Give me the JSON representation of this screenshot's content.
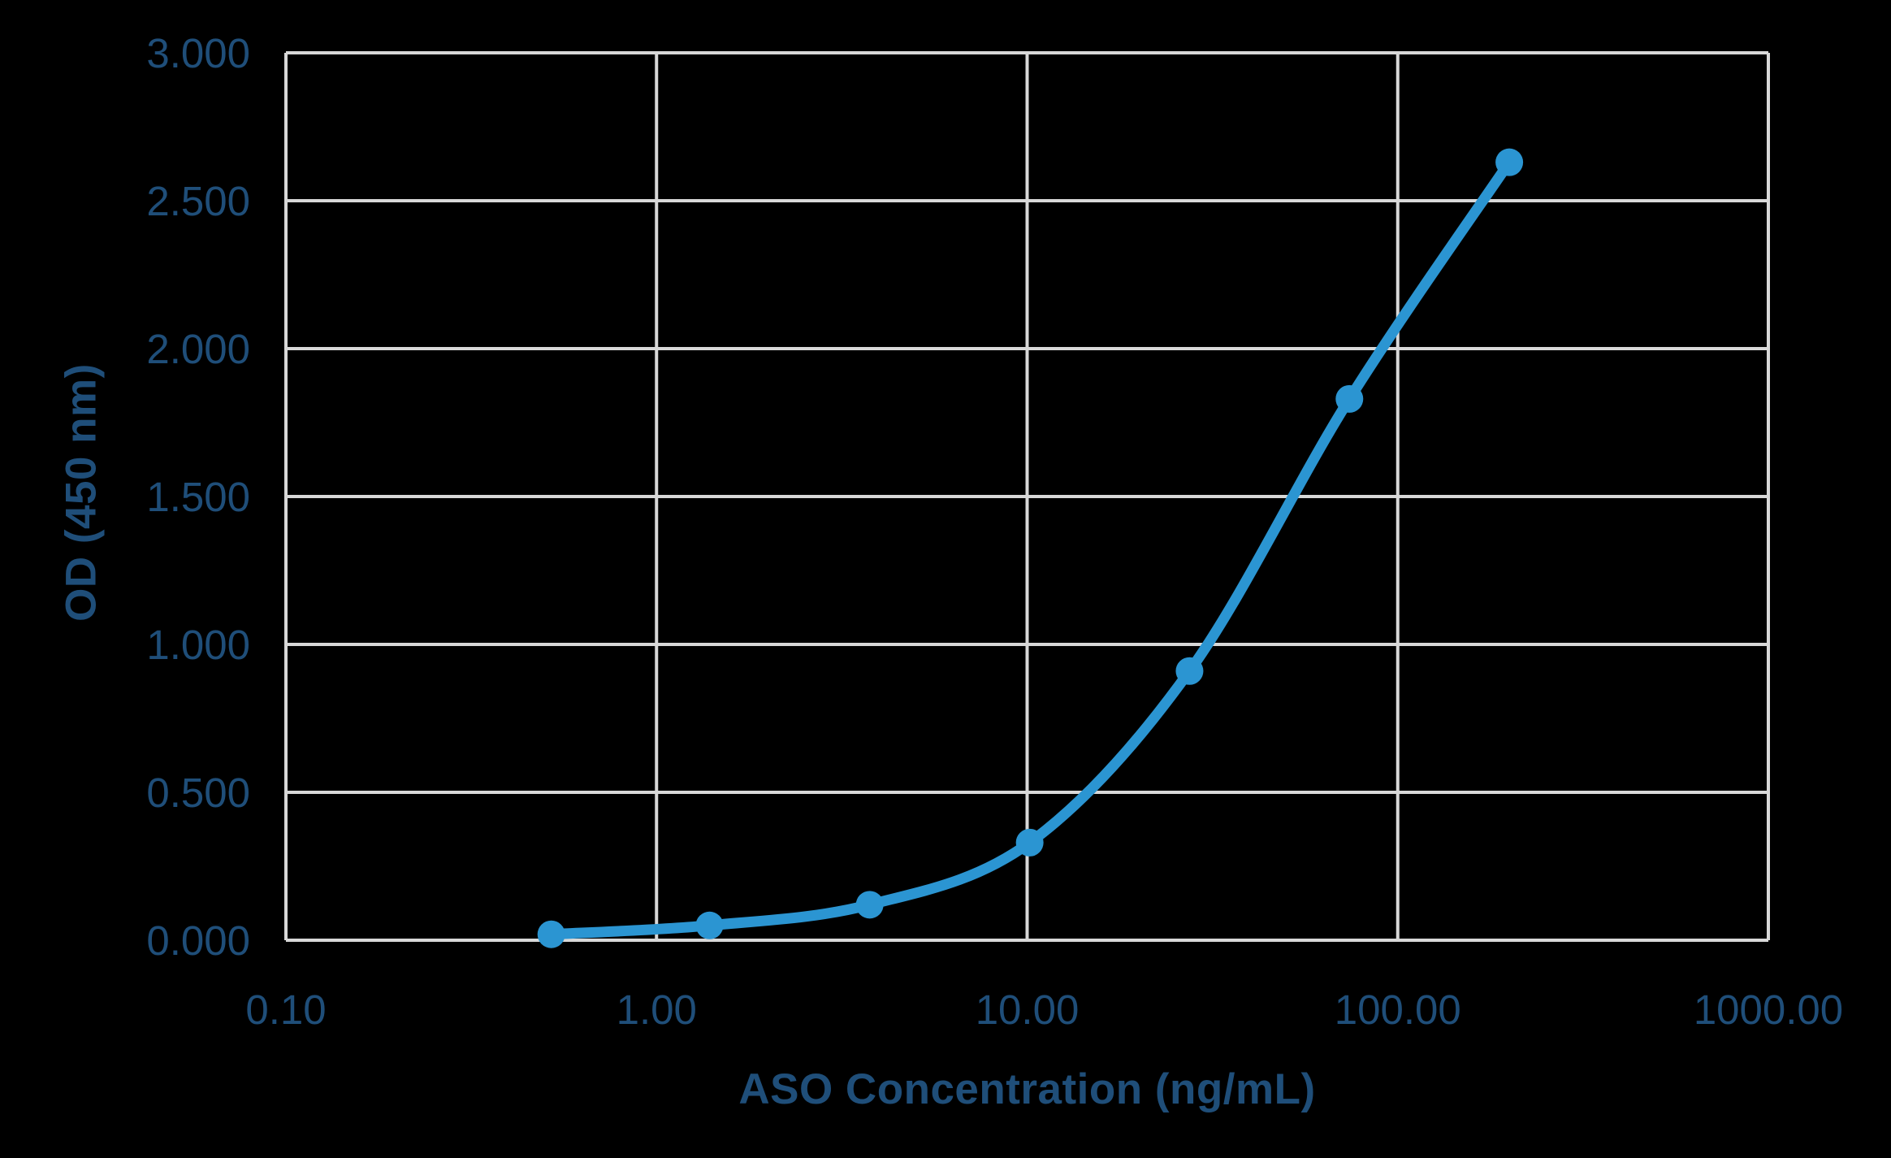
{
  "chart_data": {
    "type": "line",
    "xlabel": "ASO Concentration (ng/mL)",
    "ylabel": "OD (450 nm)",
    "x_scale": "log",
    "xlim": [
      0.1,
      1000
    ],
    "ylim": [
      0,
      3
    ],
    "x_ticks": [
      0.1,
      1,
      10,
      100,
      1000
    ],
    "x_tick_labels": [
      "0.10",
      "1.00",
      "10.00",
      "100.00",
      "1000.00"
    ],
    "y_ticks": [
      0,
      0.5,
      1,
      1.5,
      2,
      2.5,
      3
    ],
    "y_tick_labels": [
      "0.000",
      "0.500",
      "1.000",
      "1.500",
      "2.000",
      "2.500",
      "3.000"
    ],
    "grid": true,
    "legend": "none",
    "series": [
      {
        "x": [
          0.52,
          1.39,
          3.76,
          10.16,
          27.43,
          74.07,
          200
        ],
        "y": [
          0.02,
          0.05,
          0.12,
          0.33,
          0.91,
          1.83,
          2.63
        ]
      }
    ],
    "colors": {
      "background": "#000000",
      "line": "#2b95d2",
      "marker": "#2b95d2",
      "grid": "#d8d8d8",
      "text": "#1f4e79"
    }
  }
}
